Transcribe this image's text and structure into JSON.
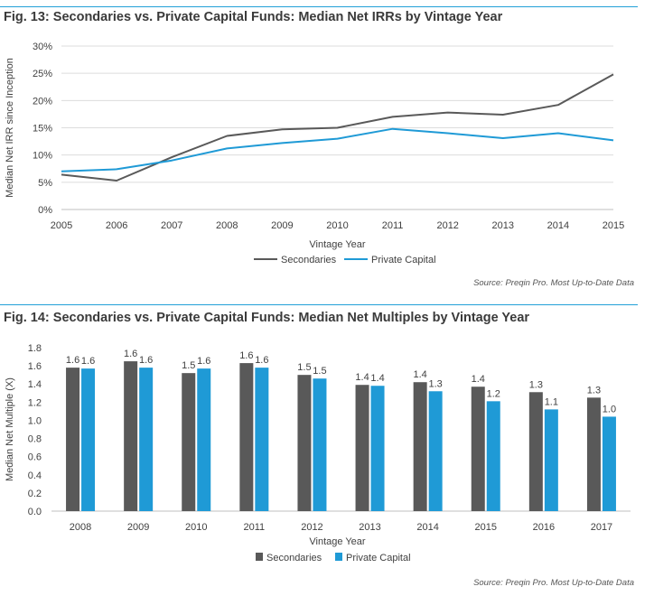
{
  "figures": [
    {
      "title": "Fig. 13: Secondaries vs. Private Capital Funds: Median Net IRRs by Vintage Year",
      "source": "Source: Preqin Pro. Most Up-to-Date Data"
    },
    {
      "title": "Fig. 14: Secondaries vs. Private Capital Funds: Median Net Multiples by Vintage Year",
      "source": "Source: Preqin Pro. Most Up-to-Date Data"
    }
  ],
  "colors": {
    "secondaries": "#595959",
    "private_capital": "#1f9ad6",
    "rule": "#22a0d8"
  },
  "chart_data": [
    {
      "type": "line",
      "title": "Fig. 13: Secondaries vs. Private Capital Funds: Median Net IRRs by Vintage Year",
      "xlabel": "Vintage Year",
      "ylabel": "Median Net IRR since Inception",
      "x": [
        "2005",
        "2006",
        "2007",
        "2008",
        "2009",
        "2010",
        "2011",
        "2012",
        "2013",
        "2014",
        "2015"
      ],
      "yticks": [
        "0%",
        "5%",
        "10%",
        "15%",
        "20%",
        "25%",
        "30%"
      ],
      "ylim": [
        0,
        30
      ],
      "y_unit": "%",
      "grid": true,
      "legend_position": "bottom",
      "series": [
        {
          "name": "Secondaries",
          "color": "#595959",
          "values": [
            6.4,
            5.3,
            9.6,
            13.5,
            14.7,
            15.0,
            17.0,
            17.8,
            17.4,
            19.2,
            24.8
          ]
        },
        {
          "name": "Private Capital",
          "color": "#1f9ad6",
          "values": [
            7.0,
            7.4,
            9.0,
            11.2,
            12.2,
            13.0,
            14.8,
            14.0,
            13.1,
            14.0,
            12.7
          ]
        }
      ]
    },
    {
      "type": "bar",
      "title": "Fig. 14: Secondaries vs. Private Capital Funds: Median Net Multiples by Vintage Year",
      "xlabel": "Vintage Year",
      "ylabel": "Median Net Multiple (X)",
      "categories": [
        "2008",
        "2009",
        "2010",
        "2011",
        "2012",
        "2013",
        "2014",
        "2015",
        "2016",
        "2017"
      ],
      "yticks": [
        "0.0",
        "0.2",
        "0.4",
        "0.6",
        "0.8",
        "1.0",
        "1.2",
        "1.4",
        "1.6",
        "1.8"
      ],
      "ylim": [
        0,
        1.8
      ],
      "grid": false,
      "legend_position": "bottom",
      "series": [
        {
          "name": "Secondaries",
          "color": "#595959",
          "values": [
            1.58,
            1.65,
            1.52,
            1.63,
            1.5,
            1.39,
            1.42,
            1.37,
            1.31,
            1.25
          ],
          "labels": [
            "1.6",
            "1.6",
            "1.5",
            "1.6",
            "1.5",
            "1.4",
            "1.4",
            "1.4",
            "1.3",
            "1.3"
          ]
        },
        {
          "name": "Private Capital",
          "color": "#1f9ad6",
          "values": [
            1.57,
            1.58,
            1.57,
            1.58,
            1.46,
            1.38,
            1.32,
            1.21,
            1.12,
            1.04
          ],
          "labels": [
            "1.6",
            "1.6",
            "1.6",
            "1.6",
            "1.5",
            "1.4",
            "1.3",
            "1.2",
            "1.1",
            "1.0"
          ]
        }
      ]
    }
  ]
}
